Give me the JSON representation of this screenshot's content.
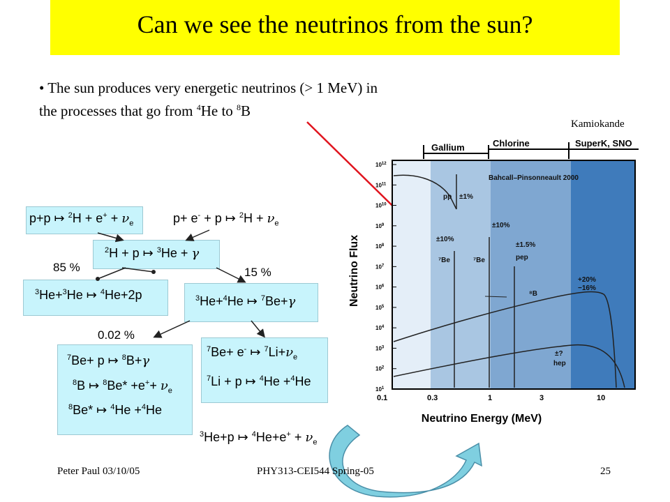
{
  "title": "Can we see the neutrinos from the sun?",
  "bullet": {
    "prefix": "• The sun produces very energetic neutrinos (> 1 MeV) in",
    "line2a": "the processes that go from ",
    "he_mass": "4",
    "he": "He to ",
    "b_mass": "8",
    "b": "B"
  },
  "label_kamiokande": "Kamiokande",
  "chain": {
    "r_pp": {
      "a": "p+p ↦ ",
      "s1": "2",
      "b": "H + e",
      "s2": "+",
      "c": " + ",
      "nu": "ν",
      "sub": "e"
    },
    "r_pep": {
      "a": "p+ e",
      "s1": "-",
      "b": " + p ↦ ",
      "s2": "2",
      "c": "H + ",
      "nu": "ν",
      "sub": "e"
    },
    "r_dp": {
      "s1": "2",
      "a": "H + p ↦ ",
      "s2": "3",
      "b": "He + ",
      "g": "γ"
    },
    "pct85": "85 %",
    "pct15": "15 %",
    "pct002": "0.02 %",
    "r_hehe": {
      "s1": "3",
      "a": "He+",
      "s2": "3",
      "b": "He ↦ ",
      "s3": "4",
      "c": "He+2p"
    },
    "r_he4": {
      "s1": "3",
      "a": "He+",
      "s2": "4",
      "b": "He ↦ ",
      "s3": "7",
      "c": "Be+",
      "g": "γ"
    },
    "r_be7p": {
      "s1": "7",
      "a": "Be+ p ↦ ",
      "s2": "8",
      "b": "B+",
      "g": "γ"
    },
    "r_b8": {
      "s1": "8",
      "a": "B ↦ ",
      "s2": "8",
      "b": "Be* +e",
      "s3": "+",
      "c": "+ ",
      "nu": "ν",
      "sub": "e"
    },
    "r_be8": {
      "s1": "8",
      "a": "Be* ↦ ",
      "s2": "4",
      "b": "He +",
      "s3": "4",
      "c": "He"
    },
    "r_be7e": {
      "s1": "7",
      "a": "Be+ e",
      "s2": "-",
      "b": " ↦ ",
      "s3": "7",
      "c": "Li+",
      "nu": "ν",
      "sub": "e"
    },
    "r_li7": {
      "s1": "7",
      "a": "Li + p ↦ ",
      "s2": "4",
      "b": "He +",
      "s3": "4",
      "c": "He"
    },
    "r_hep": {
      "s1": "3",
      "a": "He+p ↦ ",
      "s2": "4",
      "b": "He+e",
      "s3": "+",
      "c": " + ",
      "nu": "ν",
      "sub": "e"
    }
  },
  "chart": {
    "top_bands": {
      "gallium": "Gallium",
      "chlorine": "Chlorine",
      "superk": "SuperK, SNO"
    },
    "ylabel": "Neutrino Flux",
    "xlabel": "Neutrino Energy (MeV)",
    "xticks": [
      "0.1",
      "0.3",
      "1",
      "3",
      "10"
    ],
    "yticks": [
      {
        "b": "10",
        "e": "12"
      },
      {
        "b": "10",
        "e": "11"
      },
      {
        "b": "10",
        "e": "10"
      },
      {
        "b": "10",
        "e": "9"
      },
      {
        "b": "10",
        "e": "8"
      },
      {
        "b": "10",
        "e": "7"
      },
      {
        "b": "10",
        "e": "6"
      },
      {
        "b": "10",
        "e": "5"
      },
      {
        "b": "10",
        "e": "4"
      },
      {
        "b": "10",
        "e": "3"
      },
      {
        "b": "10",
        "e": "2"
      },
      {
        "b": "10",
        "e": "1"
      }
    ],
    "annotations": {
      "model": "Bahcall–Pinsonneault 2000",
      "pp": "pp",
      "pp_err": "±1%",
      "be7_err1": "±10%",
      "be7_label1": "⁷Be",
      "be7_err2": "±10%",
      "be7_label2": "⁷Be",
      "pep_err": "±1.5%",
      "pep": "pep",
      "b8_label": "⁸B",
      "b8_err1": "+20%",
      "b8_err2": "−16%",
      "hep_err": "±?",
      "hep": "hep"
    },
    "colors": {
      "band_gallium": "#a9c6e2",
      "band_chlorine": "#7fa7d1",
      "band_superk": "#3f7bbb",
      "low": "#e4eef8"
    }
  },
  "footer": {
    "left": "Peter Paul 03/10/05",
    "center": "PHY313-CEI544 Spring-05",
    "page": "25"
  }
}
